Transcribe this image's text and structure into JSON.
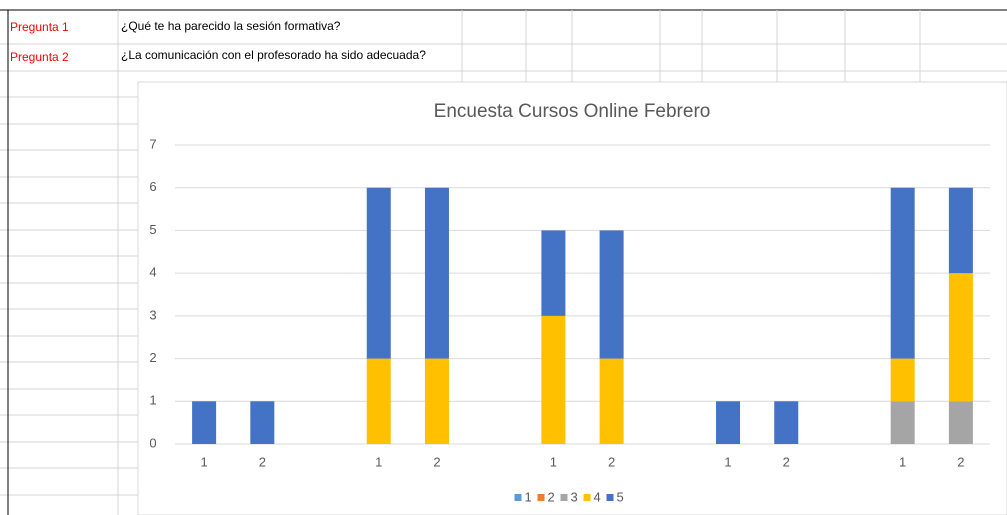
{
  "sheet": {
    "rows": [
      [
        "Pregunta 1",
        "¿Qué te ha parecido la sesión formativa?"
      ],
      [
        "Pregunta 2",
        "¿La comunicación con el profesorado ha sido adecuada?"
      ]
    ]
  },
  "chart_data": {
    "type": "stacked-bar",
    "title": "Encuesta Cursos Online Febrero",
    "categories": [
      "1",
      "2",
      null,
      "1",
      "2",
      null,
      "1",
      "2",
      null,
      "1",
      "2",
      null,
      "1",
      "2"
    ],
    "series": [
      {
        "name": "1",
        "color": "#5b9bd5",
        "values": [
          0,
          0,
          null,
          0,
          0,
          null,
          0,
          0,
          null,
          0,
          0,
          null,
          0,
          0
        ]
      },
      {
        "name": "2",
        "color": "#ed7d31",
        "values": [
          0,
          0,
          null,
          0,
          0,
          null,
          0,
          0,
          null,
          0,
          0,
          null,
          0,
          0
        ]
      },
      {
        "name": "3",
        "color": "#a5a5a5",
        "values": [
          0,
          0,
          null,
          0,
          0,
          null,
          0,
          0,
          null,
          0,
          0,
          null,
          1,
          1
        ]
      },
      {
        "name": "4",
        "color": "#ffc000",
        "values": [
          0,
          0,
          null,
          2,
          2,
          null,
          3,
          2,
          null,
          0,
          0,
          null,
          1,
          3
        ]
      },
      {
        "name": "5",
        "color": "#4472c4",
        "values": [
          1,
          1,
          null,
          4,
          4,
          null,
          2,
          3,
          null,
          1,
          1,
          null,
          4,
          2
        ]
      }
    ],
    "ylim": [
      0,
      7
    ],
    "yticks": [
      0,
      1,
      2,
      3,
      4,
      5,
      6,
      7
    ],
    "grid": true,
    "legend": "bottom"
  }
}
